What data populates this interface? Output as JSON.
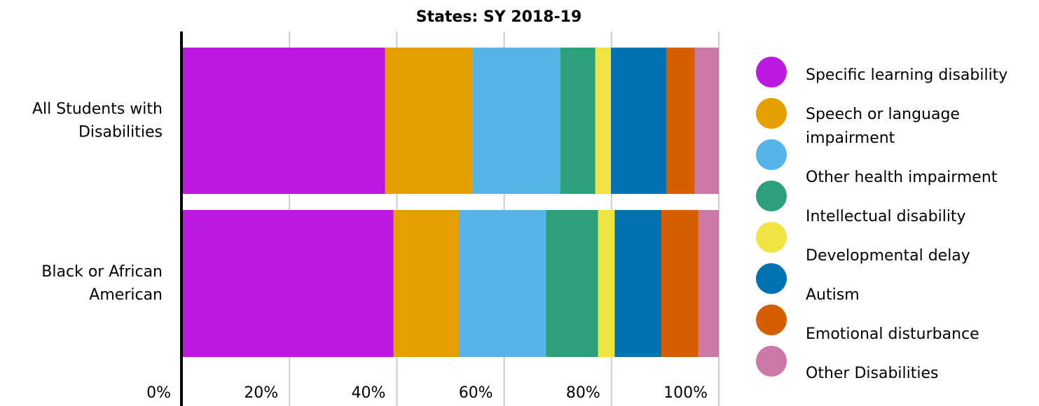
{
  "chart_data": {
    "type": "stacked-barh",
    "title": "States: SY 2018-19",
    "categories": [
      "All Students with Disabilities",
      "Black or African American"
    ],
    "series": [
      {
        "name": "Specific learning disability",
        "color": "#bc19e0",
        "values": [
          37.8,
          39.4
        ]
      },
      {
        "name": "Speech or language impairment",
        "color": "#e5a000",
        "values": [
          16.3,
          12.3
        ]
      },
      {
        "name": "Other health impairment",
        "color": "#56b4e9",
        "values": [
          16.4,
          16.1
        ]
      },
      {
        "name": "Intellectual disability",
        "color": "#2ca07a",
        "values": [
          6.5,
          9.7
        ]
      },
      {
        "name": "Developmental delay",
        "color": "#f0e442",
        "values": [
          2.9,
          3.1
        ]
      },
      {
        "name": "Autism",
        "color": "#0072b2",
        "values": [
          10.4,
          8.7
        ]
      },
      {
        "name": "Emotional disturbance",
        "color": "#d55e00",
        "values": [
          5.2,
          6.9
        ]
      },
      {
        "name": "Other Disabilities",
        "color": "#cc79a7",
        "values": [
          4.5,
          3.8
        ]
      }
    ],
    "xlim": [
      0,
      100
    ],
    "xticks": [
      {
        "value": 0,
        "label": "0%"
      },
      {
        "value": 20,
        "label": "20%"
      },
      {
        "value": 40,
        "label": "40%"
      },
      {
        "value": 60,
        "label": "60%"
      },
      {
        "value": 80,
        "label": "80%"
      },
      {
        "value": 100,
        "label": "100%"
      }
    ],
    "grid": true,
    "legend": "right"
  }
}
